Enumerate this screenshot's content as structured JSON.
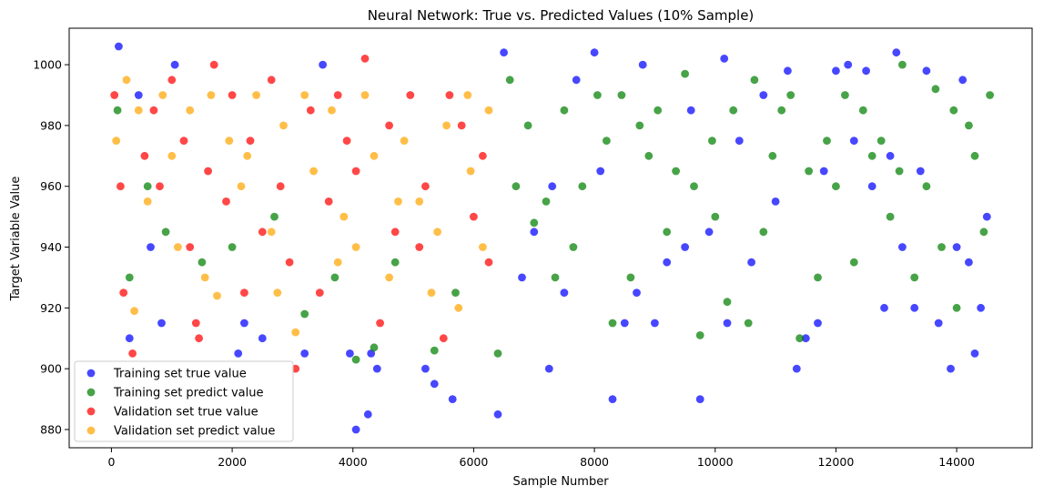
{
  "chart_data": {
    "type": "scatter",
    "title": "Neural Network: True vs. Predicted Values (10% Sample)",
    "xlabel": "Sample Number",
    "ylabel": "Target Variable Value",
    "xlim": [
      -700,
      15250
    ],
    "ylim": [
      874,
      1012
    ],
    "xticks": [
      0,
      2000,
      4000,
      6000,
      8000,
      10000,
      12000,
      14000
    ],
    "yticks": [
      880,
      900,
      920,
      940,
      960,
      980,
      1000
    ],
    "grid": false,
    "legend_position": "bottom-left",
    "series": [
      {
        "name": "Training set true value",
        "color": "#0000ff",
        "points": [
          [
            120,
            1006
          ],
          [
            1050,
            1000
          ],
          [
            300,
            910
          ],
          [
            450,
            990
          ],
          [
            650,
            940
          ],
          [
            830,
            915
          ],
          [
            2100,
            905
          ],
          [
            2200,
            915
          ],
          [
            2500,
            910
          ],
          [
            3200,
            905
          ],
          [
            3500,
            1000
          ],
          [
            4050,
            880
          ],
          [
            4250,
            885
          ],
          [
            3950,
            905
          ],
          [
            4300,
            905
          ],
          [
            4400,
            900
          ],
          [
            5200,
            900
          ],
          [
            5350,
            895
          ],
          [
            5650,
            890
          ],
          [
            6400,
            885
          ],
          [
            6500,
            1004
          ],
          [
            7250,
            900
          ],
          [
            7700,
            995
          ],
          [
            8000,
            1004
          ],
          [
            8300,
            890
          ],
          [
            8500,
            915
          ],
          [
            8800,
            1000
          ],
          [
            9000,
            915
          ],
          [
            9200,
            935
          ],
          [
            9500,
            940
          ],
          [
            9750,
            890
          ],
          [
            9900,
            945
          ],
          [
            10150,
            1002
          ],
          [
            10200,
            915
          ],
          [
            10600,
            935
          ],
          [
            10800,
            990
          ],
          [
            11200,
            998
          ],
          [
            11350,
            900
          ],
          [
            11500,
            910
          ],
          [
            11700,
            915
          ],
          [
            12000,
            998
          ],
          [
            12200,
            1000
          ],
          [
            12500,
            998
          ],
          [
            12800,
            920
          ],
          [
            13000,
            1004
          ],
          [
            13100,
            940
          ],
          [
            13300,
            920
          ],
          [
            13500,
            998
          ],
          [
            13700,
            915
          ],
          [
            13900,
            900
          ],
          [
            14100,
            995
          ],
          [
            14200,
            935
          ],
          [
            14300,
            905
          ],
          [
            14400,
            920
          ],
          [
            14500,
            950
          ],
          [
            6800,
            930
          ],
          [
            7000,
            945
          ],
          [
            7300,
            960
          ],
          [
            7500,
            925
          ],
          [
            8100,
            965
          ],
          [
            8700,
            925
          ],
          [
            9600,
            985
          ],
          [
            10400,
            975
          ],
          [
            11000,
            955
          ],
          [
            11800,
            965
          ],
          [
            12300,
            975
          ],
          [
            12600,
            960
          ],
          [
            12900,
            970
          ],
          [
            13400,
            965
          ],
          [
            14000,
            940
          ]
        ]
      },
      {
        "name": "Training set predict value",
        "color": "#008000",
        "points": [
          [
            100,
            985
          ],
          [
            300,
            930
          ],
          [
            600,
            960
          ],
          [
            900,
            945
          ],
          [
            1500,
            935
          ],
          [
            2000,
            940
          ],
          [
            2700,
            950
          ],
          [
            3200,
            918
          ],
          [
            3700,
            930
          ],
          [
            4050,
            903
          ],
          [
            4350,
            907
          ],
          [
            4700,
            935
          ],
          [
            5350,
            906
          ],
          [
            5700,
            925
          ],
          [
            6400,
            905
          ],
          [
            6600,
            995
          ],
          [
            6900,
            980
          ],
          [
            7200,
            955
          ],
          [
            7500,
            985
          ],
          [
            7800,
            960
          ],
          [
            8050,
            990
          ],
          [
            8300,
            915
          ],
          [
            8600,
            930
          ],
          [
            8900,
            970
          ],
          [
            9200,
            945
          ],
          [
            9500,
            997
          ],
          [
            9750,
            911
          ],
          [
            10000,
            950
          ],
          [
            10200,
            922
          ],
          [
            10550,
            915
          ],
          [
            10800,
            945
          ],
          [
            11100,
            985
          ],
          [
            11400,
            910
          ],
          [
            11700,
            930
          ],
          [
            12000,
            960
          ],
          [
            12300,
            935
          ],
          [
            12600,
            970
          ],
          [
            12900,
            950
          ],
          [
            13100,
            1000
          ],
          [
            13300,
            930
          ],
          [
            13500,
            960
          ],
          [
            13750,
            940
          ],
          [
            14000,
            920
          ],
          [
            14200,
            980
          ],
          [
            14450,
            945
          ],
          [
            14550,
            990
          ],
          [
            6700,
            960
          ],
          [
            7000,
            948
          ],
          [
            7350,
            930
          ],
          [
            7650,
            940
          ],
          [
            8200,
            975
          ],
          [
            8450,
            990
          ],
          [
            8750,
            980
          ],
          [
            9050,
            985
          ],
          [
            9350,
            965
          ],
          [
            9650,
            960
          ],
          [
            9950,
            975
          ],
          [
            10300,
            985
          ],
          [
            10650,
            995
          ],
          [
            10950,
            970
          ],
          [
            11250,
            990
          ],
          [
            11550,
            965
          ],
          [
            11850,
            975
          ],
          [
            12150,
            990
          ],
          [
            12450,
            985
          ],
          [
            12750,
            975
          ],
          [
            13050,
            965
          ],
          [
            13650,
            992
          ],
          [
            13950,
            985
          ],
          [
            14300,
            970
          ]
        ]
      },
      {
        "name": "Validation set true value",
        "color": "#ff0000",
        "points": [
          [
            50,
            990
          ],
          [
            200,
            925
          ],
          [
            350,
            905
          ],
          [
            550,
            970
          ],
          [
            800,
            960
          ],
          [
            1000,
            995
          ],
          [
            1200,
            975
          ],
          [
            1400,
            915
          ],
          [
            1450,
            910
          ],
          [
            1700,
            1000
          ],
          [
            1900,
            955
          ],
          [
            2200,
            925
          ],
          [
            2500,
            945
          ],
          [
            2800,
            960
          ],
          [
            3050,
            900
          ],
          [
            3300,
            985
          ],
          [
            3600,
            955
          ],
          [
            3900,
            975
          ],
          [
            4200,
            1002
          ],
          [
            4450,
            915
          ],
          [
            4700,
            945
          ],
          [
            4950,
            990
          ],
          [
            5200,
            960
          ],
          [
            5500,
            910
          ],
          [
            5800,
            980
          ],
          [
            6000,
            950
          ],
          [
            6150,
            970
          ],
          [
            6250,
            935
          ],
          [
            150,
            960
          ],
          [
            700,
            985
          ],
          [
            1300,
            940
          ],
          [
            1600,
            965
          ],
          [
            2000,
            990
          ],
          [
            2300,
            975
          ],
          [
            2650,
            995
          ],
          [
            2950,
            935
          ],
          [
            3450,
            925
          ],
          [
            3750,
            990
          ],
          [
            4050,
            965
          ],
          [
            4600,
            980
          ],
          [
            5100,
            940
          ],
          [
            5600,
            990
          ]
        ]
      },
      {
        "name": "Validation set predict value",
        "color": "#ffa500",
        "points": [
          [
            80,
            975
          ],
          [
            250,
            995
          ],
          [
            380,
            919
          ],
          [
            600,
            955
          ],
          [
            850,
            990
          ],
          [
            1100,
            940
          ],
          [
            1300,
            985
          ],
          [
            1550,
            930
          ],
          [
            1750,
            924
          ],
          [
            1950,
            975
          ],
          [
            2150,
            960
          ],
          [
            2400,
            990
          ],
          [
            2650,
            945
          ],
          [
            2850,
            980
          ],
          [
            3050,
            912
          ],
          [
            3350,
            965
          ],
          [
            3650,
            985
          ],
          [
            3850,
            950
          ],
          [
            4050,
            940
          ],
          [
            4350,
            970
          ],
          [
            4600,
            930
          ],
          [
            4850,
            975
          ],
          [
            5100,
            955
          ],
          [
            5300,
            925
          ],
          [
            5550,
            980
          ],
          [
            5750,
            920
          ],
          [
            5950,
            965
          ],
          [
            6150,
            940
          ],
          [
            6250,
            985
          ],
          [
            450,
            985
          ],
          [
            1000,
            970
          ],
          [
            1650,
            990
          ],
          [
            2250,
            970
          ],
          [
            2750,
            925
          ],
          [
            3200,
            990
          ],
          [
            3750,
            935
          ],
          [
            4200,
            990
          ],
          [
            4750,
            955
          ],
          [
            5400,
            945
          ],
          [
            5900,
            990
          ]
        ]
      }
    ]
  }
}
